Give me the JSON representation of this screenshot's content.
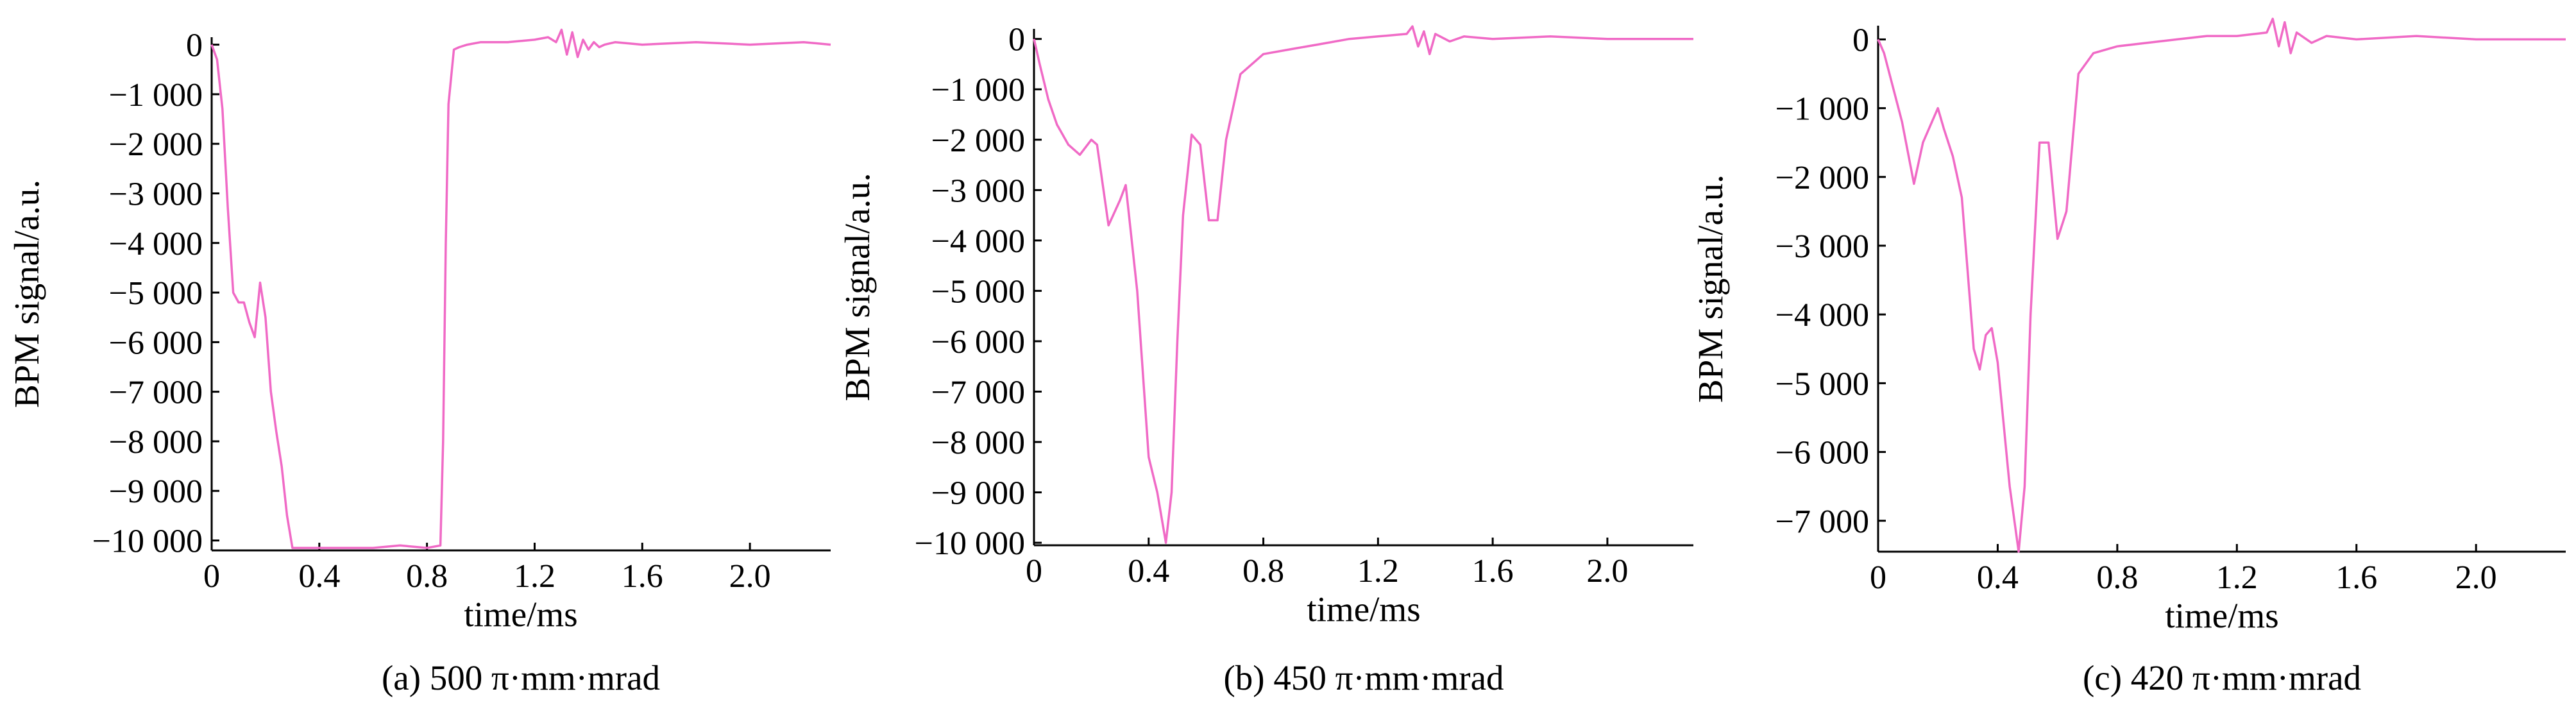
{
  "figure": {
    "panels": [
      {
        "caption": "(a) 500 π·mm·mrad"
      },
      {
        "caption": "(b) 450 π·mm·mrad"
      },
      {
        "caption": "(c) 420 π·mm·mrad"
      }
    ]
  },
  "chart_data": [
    {
      "type": "line",
      "title": "",
      "caption": "(a) 500 π·mm·mrad",
      "xlabel": "time/ms",
      "ylabel": "BPM signal/a.u.",
      "xlim": [
        0,
        2.3
      ],
      "ylim": [
        -10200,
        150
      ],
      "xticks": [
        0,
        0.4,
        0.8,
        1.2,
        1.6,
        2.0
      ],
      "xtick_labels": [
        "0",
        "0.4",
        "0.8",
        "1.2",
        "1.6",
        "2.0"
      ],
      "yticks": [
        0,
        -1000,
        -2000,
        -3000,
        -4000,
        -5000,
        -6000,
        -7000,
        -8000,
        -9000,
        -10000
      ],
      "ytick_labels": [
        "0",
        "−1 000",
        "−2 000",
        "−3 000",
        "−4 000",
        "−5 000",
        "−6 000",
        "−7 000",
        "−8 000",
        "−9 000",
        "−10 000"
      ],
      "color": "#f06ac6",
      "series": [
        {
          "x": [
            0,
            0.02,
            0.04,
            0.06,
            0.08,
            0.1,
            0.12,
            0.14,
            0.16,
            0.18,
            0.2,
            0.22,
            0.24,
            0.26,
            0.28,
            0.3,
            0.31,
            0.4,
            0.5,
            0.6,
            0.7,
            0.8,
            0.85,
            0.86,
            0.87,
            0.88,
            0.9,
            0.92,
            0.95,
            1.0,
            1.1,
            1.2,
            1.25,
            1.28,
            1.3,
            1.32,
            1.34,
            1.36,
            1.38,
            1.4,
            1.42,
            1.44,
            1.46,
            1.5,
            1.6,
            1.8,
            2.0,
            2.2,
            2.3
          ],
          "y": [
            0,
            -300,
            -1300,
            -3300,
            -5000,
            -5200,
            -5200,
            -5600,
            -5900,
            -4800,
            -5500,
            -7000,
            -7800,
            -8500,
            -9500,
            -10150,
            -10150,
            -10150,
            -10150,
            -10150,
            -10100,
            -10150,
            -10100,
            -8000,
            -4000,
            -1200,
            -100,
            -50,
            0,
            50,
            50,
            100,
            150,
            50,
            300,
            -200,
            250,
            -250,
            100,
            -100,
            50,
            -50,
            0,
            50,
            0,
            50,
            0,
            50,
            0
          ]
        }
      ]
    },
    {
      "type": "line",
      "title": "",
      "caption": "(b) 450 π·mm·mrad",
      "xlabel": "time/ms",
      "ylabel": "BPM signal/a.u.",
      "xlim": [
        0,
        2.3
      ],
      "ylim": [
        -10050,
        200
      ],
      "xticks": [
        0,
        0.4,
        0.8,
        1.2,
        1.6,
        2.0
      ],
      "xtick_labels": [
        "0",
        "0.4",
        "0.8",
        "1.2",
        "1.6",
        "2.0"
      ],
      "yticks": [
        0,
        -1000,
        -2000,
        -3000,
        -4000,
        -5000,
        -6000,
        -7000,
        -8000,
        -9000,
        -10000
      ],
      "ytick_labels": [
        "0",
        "−1 000",
        "−2 000",
        "−3 000",
        "−4 000",
        "−5 000",
        "−6 000",
        "−7 000",
        "−8 000",
        "−9 000",
        "−10 000"
      ],
      "color": "#f06ac6",
      "series": [
        {
          "x": [
            0,
            0.02,
            0.05,
            0.08,
            0.12,
            0.16,
            0.2,
            0.22,
            0.26,
            0.3,
            0.32,
            0.36,
            0.4,
            0.43,
            0.46,
            0.48,
            0.5,
            0.52,
            0.55,
            0.58,
            0.61,
            0.64,
            0.67,
            0.72,
            0.8,
            0.9,
            1.0,
            1.1,
            1.2,
            1.3,
            1.32,
            1.34,
            1.36,
            1.38,
            1.4,
            1.45,
            1.5,
            1.6,
            1.8,
            2.0,
            2.3
          ],
          "y": [
            0,
            -500,
            -1200,
            -1700,
            -2100,
            -2300,
            -2000,
            -2100,
            -3700,
            -3200,
            -2900,
            -5000,
            -8300,
            -9000,
            -10000,
            -9000,
            -6000,
            -3500,
            -1900,
            -2100,
            -3600,
            -3600,
            -2000,
            -700,
            -300,
            -200,
            -100,
            0,
            50,
            100,
            250,
            -150,
            150,
            -300,
            100,
            -50,
            50,
            0,
            50,
            0,
            0
          ]
        }
      ]
    },
    {
      "type": "line",
      "title": "",
      "caption": "(c) 420 π·mm·mrad",
      "xlabel": "time/ms",
      "ylabel": "BPM signal/a.u.",
      "xlim": [
        0,
        2.3
      ],
      "ylim": [
        -7450,
        200
      ],
      "xticks": [
        0,
        0.4,
        0.8,
        1.2,
        1.6,
        2.0
      ],
      "xtick_labels": [
        "0",
        "0.4",
        "0.8",
        "1.2",
        "1.6",
        "2.0"
      ],
      "yticks": [
        0,
        -1000,
        -2000,
        -3000,
        -4000,
        -5000,
        -6000,
        -7000
      ],
      "ytick_labels": [
        "0",
        "−1 000",
        "−2 000",
        "−3 000",
        "−4 000",
        "−5 000",
        "−6 000",
        "−7 000"
      ],
      "color": "#f06ac6",
      "series": [
        {
          "x": [
            0,
            0.02,
            0.05,
            0.08,
            0.12,
            0.15,
            0.2,
            0.22,
            0.25,
            0.28,
            0.32,
            0.34,
            0.36,
            0.38,
            0.4,
            0.44,
            0.47,
            0.49,
            0.51,
            0.54,
            0.57,
            0.6,
            0.63,
            0.67,
            0.72,
            0.8,
            0.9,
            1.0,
            1.1,
            1.2,
            1.3,
            1.32,
            1.34,
            1.36,
            1.38,
            1.4,
            1.45,
            1.5,
            1.6,
            1.8,
            2.0,
            2.3
          ],
          "y": [
            0,
            -200,
            -700,
            -1200,
            -2100,
            -1500,
            -1000,
            -1300,
            -1700,
            -2300,
            -4500,
            -4800,
            -4300,
            -4200,
            -4700,
            -6500,
            -7450,
            -6500,
            -4000,
            -1500,
            -1500,
            -2900,
            -2500,
            -500,
            -200,
            -100,
            -50,
            0,
            50,
            50,
            100,
            300,
            -100,
            250,
            -200,
            100,
            -50,
            50,
            0,
            50,
            0,
            0
          ]
        }
      ]
    }
  ]
}
